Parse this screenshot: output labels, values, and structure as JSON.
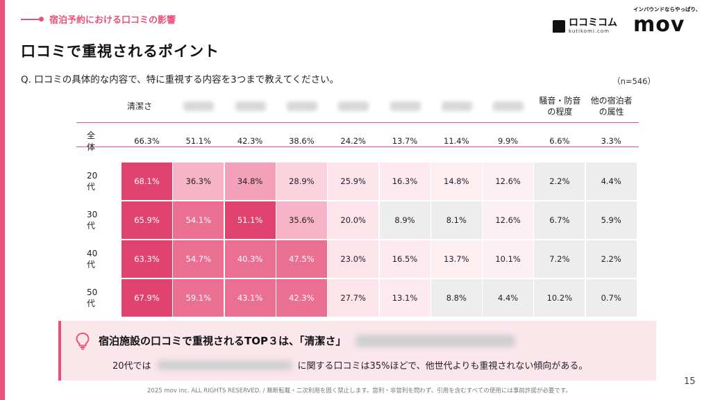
{
  "section_tag": "宿泊予約における口コミの影響",
  "title": "口コミで重視されるポイント",
  "question": "Q. 口コミの具体的な内容で、特に重視する内容を3つまで教えてください。",
  "n_label": "（n=546）",
  "logos": {
    "kuti_main": "ロコミコム",
    "kuti_sub": "kutikomi.com",
    "mov_tagline": "インバウンドならやっぱり、",
    "mov_word": "mov"
  },
  "columns": [
    "清潔さ",
    "",
    "",
    "",
    "",
    "",
    "",
    "",
    "騒音・防音\nの程度",
    "他の宿泊者\nの属性"
  ],
  "overall": {
    "label": "全体",
    "values": [
      "66.3%",
      "51.1%",
      "42.3%",
      "38.6%",
      "24.2%",
      "13.7%",
      "11.4%",
      "9.9%",
      "6.6%",
      "3.3%"
    ]
  },
  "rows": [
    {
      "label": "20代",
      "values": [
        "68.1%",
        "36.3%",
        "34.8%",
        "28.9%",
        "25.9%",
        "16.3%",
        "14.8%",
        "12.6%",
        "2.2%",
        "4.4%"
      ]
    },
    {
      "label": "30代",
      "values": [
        "65.9%",
        "54.1%",
        "51.1%",
        "35.6%",
        "20.0%",
        "8.9%",
        "8.1%",
        "12.6%",
        "6.7%",
        "5.9%"
      ]
    },
    {
      "label": "40代",
      "values": [
        "63.3%",
        "54.7%",
        "40.3%",
        "47.5%",
        "23.0%",
        "16.5%",
        "13.7%",
        "10.1%",
        "7.2%",
        "2.2%"
      ]
    },
    {
      "label": "50代",
      "values": [
        "67.9%",
        "59.1%",
        "43.1%",
        "42.3%",
        "27.7%",
        "13.1%",
        "8.8%",
        "4.4%",
        "10.2%",
        "0.7%"
      ]
    }
  ],
  "cell_colors": [
    [
      "#e0436f",
      "#f7b3c7",
      "#f4a0ba",
      "#fbd3df",
      "#fde4eb",
      "#fdeaf0",
      "#fdeef2",
      "#fdf0f4",
      "#ededed",
      "#ededed"
    ],
    [
      "#e0436f",
      "#eb6f93",
      "#e0436f",
      "#f7b3c7",
      "#fde4eb",
      "#ededed",
      "#ededed",
      "#fdf0f4",
      "#ededed",
      "#ededed"
    ],
    [
      "#e0436f",
      "#eb6f93",
      "#eb6f93",
      "#eb6f93",
      "#fde4eb",
      "#fdeaf0",
      "#fdeef2",
      "#fdf0f4",
      "#ededed",
      "#ededed"
    ],
    [
      "#e0436f",
      "#eb6f93",
      "#eb6f93",
      "#eb6f93",
      "#fde4eb",
      "#fdeaf0",
      "#ededed",
      "#ededed",
      "#ededed",
      "#ededed"
    ]
  ],
  "callout": {
    "title_prefix": "宿泊施設の口コミで重視されるTOP３は、「清潔さ」",
    "body_prefix": "20代では",
    "body_suffix": "に関する口コミは35%ほどで、他世代よりも重視されない傾向がある。"
  },
  "footer": "2025 mov inc. ALL RIGHTS RESERVED. / 無断転載・二次利用を固く禁止します。営利・非営利を問わず、引用を含むすべての使用には事前許諾が必要です。",
  "page_number": "15",
  "colors": {
    "accent": "#e8517a",
    "dark_cell": "#e0436f",
    "gray_cell": "#ededed"
  }
}
